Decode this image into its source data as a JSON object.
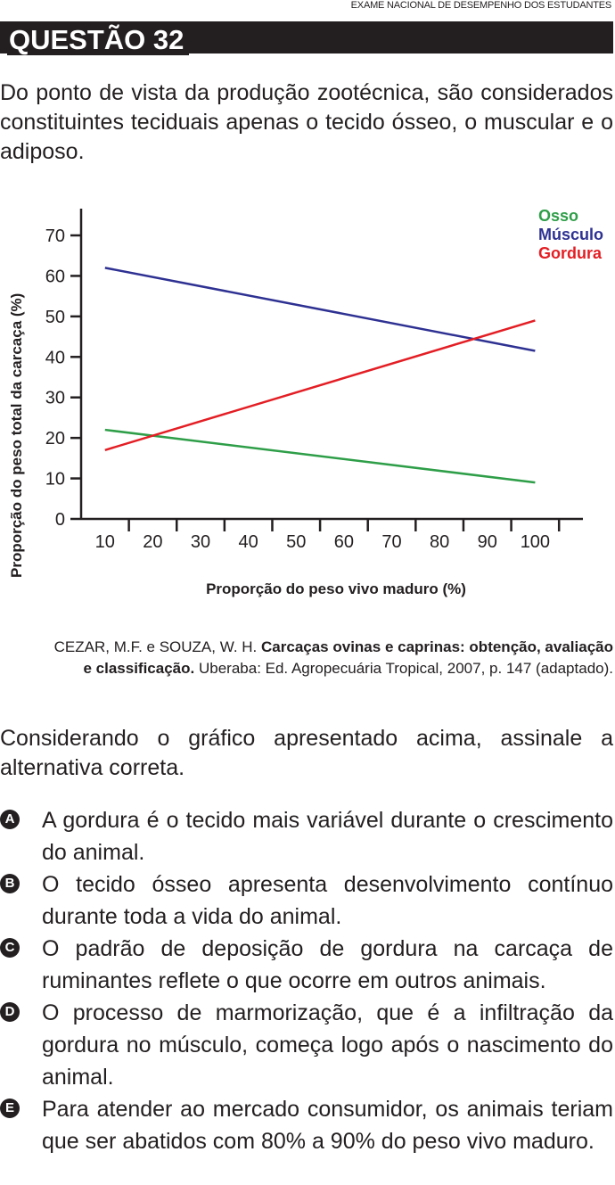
{
  "header": {
    "exam_name": "EXAME NACIONAL DE DESEMPENHO DOS ESTUDANTES",
    "question_title": "QUESTÃO 32"
  },
  "intro_text": "Do ponto de vista da produção zootécnica, são considerados constituintes teciduais apenas o tecido ósseo, o muscular e o adiposo.",
  "chart_data": {
    "type": "line",
    "xlabel": "Proporção do peso vivo maduro (%)",
    "ylabel": "Proporção do peso total da carcaça (%)",
    "x_ticks": [
      "10",
      "20",
      "30",
      "40",
      "50",
      "60",
      "70",
      "80",
      "90",
      "100"
    ],
    "y_ticks": [
      "0",
      "10",
      "20",
      "30",
      "40",
      "50",
      "60",
      "70"
    ],
    "xlim": [
      5,
      110
    ],
    "ylim": [
      0,
      70
    ],
    "grid": false,
    "legend_placement": "top-right",
    "series": [
      {
        "name": "Osso",
        "color": "#2e9e48",
        "x": [
          10,
          100
        ],
        "y": [
          22,
          9
        ]
      },
      {
        "name": "Músculo",
        "color": "#2e3192",
        "x": [
          10,
          100
        ],
        "y": [
          62,
          41.5
        ]
      },
      {
        "name": "Gordura",
        "color": "#e31e24",
        "x": [
          10,
          100
        ],
        "y": [
          17,
          49
        ]
      }
    ]
  },
  "citation": {
    "authors": "CEZAR, M.F. e SOUZA, W. H.",
    "title": "Carcaças ovinas e caprinas: obtenção, avaliação e classificação.",
    "publisher": "Uberaba: Ed. Agropecuária Tropical, 2007,",
    "pages": "p. 147 (adaptado)."
  },
  "stem_text": "Considerando o gráfico apresentado acima, assinale a alternativa correta.",
  "options": [
    {
      "letter": "A",
      "text": "A gordura é o tecido mais variável durante o crescimento do animal."
    },
    {
      "letter": "B",
      "text": "O tecido ósseo apresenta desenvolvimento contínuo durante toda a vida do animal."
    },
    {
      "letter": "C",
      "text": "O padrão de deposição de gordura na carcaça de ruminantes reflete o que ocorre em outros animais."
    },
    {
      "letter": "D",
      "text": "O processo de marmorização, que é a infiltração da gordura no músculo, começa logo após o nascimento do animal."
    },
    {
      "letter": "E",
      "text": "Para atender ao mercado consumidor, os animais teriam que ser abatidos com 80% a 90% do peso vivo maduro."
    }
  ]
}
